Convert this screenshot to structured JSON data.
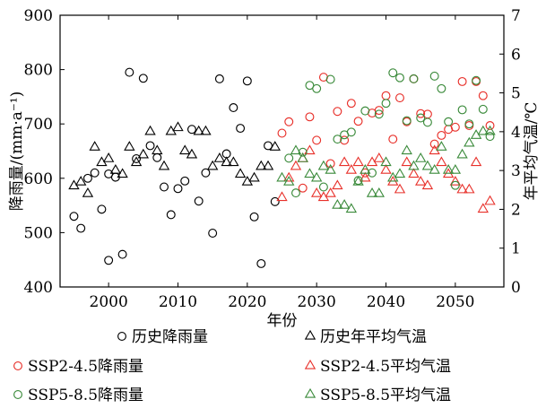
{
  "chart_data": {
    "type": "scatter",
    "xlabel": "年份",
    "ylabel_left": "降雨量/(mm·a⁻¹)",
    "ylabel_right": "年平均气温/℃",
    "xlim": [
      1993,
      2057
    ],
    "ylim_left": [
      400,
      900
    ],
    "ylim_right": [
      0,
      7
    ],
    "x_ticks": [
      2000,
      2010,
      2020,
      2030,
      2040,
      2050
    ],
    "y_left_ticks": [
      400,
      500,
      600,
      700,
      800,
      900
    ],
    "y_right_ticks": [
      0,
      1,
      2,
      3,
      4,
      5,
      6,
      7
    ],
    "grid": false,
    "legend_position": "bottom",
    "series": [
      {
        "name": "历史降雨量",
        "axis": "left",
        "marker": "circle",
        "color": "#000000",
        "points": [
          [
            1995,
            530
          ],
          [
            1996,
            508
          ],
          [
            1997,
            600
          ],
          [
            1998,
            610
          ],
          [
            1999,
            543
          ],
          [
            2000,
            449
          ],
          [
            2000,
            608
          ],
          [
            2001,
            602
          ],
          [
            2002,
            460
          ],
          [
            2003,
            795
          ],
          [
            2004,
            636
          ],
          [
            2005,
            784
          ],
          [
            2006,
            660
          ],
          [
            2007,
            638
          ],
          [
            2008,
            584
          ],
          [
            2009,
            533
          ],
          [
            2010,
            581
          ],
          [
            2011,
            595
          ],
          [
            2012,
            690
          ],
          [
            2013,
            558
          ],
          [
            2014,
            610
          ],
          [
            2015,
            499
          ],
          [
            2016,
            783
          ],
          [
            2017,
            645
          ],
          [
            2018,
            730
          ],
          [
            2019,
            692
          ],
          [
            2020,
            779
          ],
          [
            2021,
            529
          ],
          [
            2022,
            443
          ],
          [
            2023,
            660
          ],
          [
            2024,
            557
          ]
        ]
      },
      {
        "name": "历史年平均气温",
        "axis": "right",
        "marker": "triangle",
        "color": "#000000",
        "points": [
          [
            1995,
            2.6
          ],
          [
            1996,
            2.7
          ],
          [
            1997,
            2.4
          ],
          [
            1998,
            3.6
          ],
          [
            1999,
            3.2
          ],
          [
            2000,
            3.3
          ],
          [
            2001,
            3.0
          ],
          [
            2002,
            2.9
          ],
          [
            2003,
            3.6
          ],
          [
            2004,
            3.2
          ],
          [
            2005,
            3.4
          ],
          [
            2006,
            4.0
          ],
          [
            2007,
            3.5
          ],
          [
            2008,
            3.1
          ],
          [
            2009,
            4.0
          ],
          [
            2010,
            4.1
          ],
          [
            2011,
            3.5
          ],
          [
            2012,
            3.4
          ],
          [
            2013,
            4.0
          ],
          [
            2014,
            4.0
          ],
          [
            2015,
            3.1
          ],
          [
            2016,
            3.3
          ],
          [
            2017,
            3.2
          ],
          [
            2018,
            3.2
          ],
          [
            2019,
            2.9
          ],
          [
            2020,
            2.7
          ],
          [
            2021,
            2.8
          ],
          [
            2022,
            3.1
          ],
          [
            2023,
            3.1
          ],
          [
            2024,
            3.6
          ]
        ]
      },
      {
        "name": "SSP2-4.5降雨量",
        "axis": "left",
        "marker": "circle",
        "color": "#e8302a",
        "points": [
          [
            2025,
            683
          ],
          [
            2026,
            704
          ],
          [
            2028,
            582
          ],
          [
            2029,
            713
          ],
          [
            2030,
            670
          ],
          [
            2031,
            786
          ],
          [
            2032,
            627
          ],
          [
            2033,
            723
          ],
          [
            2034,
            670
          ],
          [
            2035,
            738
          ],
          [
            2036,
            705
          ],
          [
            2037,
            610
          ],
          [
            2038,
            720
          ],
          [
            2039,
            725
          ],
          [
            2040,
            752
          ],
          [
            2041,
            672
          ],
          [
            2042,
            748
          ],
          [
            2043,
            704
          ],
          [
            2044,
            783
          ],
          [
            2045,
            719
          ],
          [
            2046,
            718
          ],
          [
            2047,
            663
          ],
          [
            2048,
            679
          ],
          [
            2049,
            690
          ],
          [
            2050,
            694
          ],
          [
            2051,
            778
          ],
          [
            2052,
            697
          ],
          [
            2053,
            778
          ],
          [
            2054,
            752
          ],
          [
            2055,
            697
          ]
        ]
      },
      {
        "name": "SSP2-4.5平均气温",
        "axis": "right",
        "marker": "triangle",
        "color": "#e8302a",
        "points": [
          [
            2025,
            2.3
          ],
          [
            2026,
            2.8
          ],
          [
            2027,
            3.1
          ],
          [
            2028,
            3.3
          ],
          [
            2029,
            3.5
          ],
          [
            2030,
            2.4
          ],
          [
            2031,
            2.3
          ],
          [
            2032,
            2.4
          ],
          [
            2033,
            2.6
          ],
          [
            2034,
            3.2
          ],
          [
            2035,
            3.0
          ],
          [
            2036,
            3.2
          ],
          [
            2037,
            2.8
          ],
          [
            2038,
            3.2
          ],
          [
            2039,
            3.3
          ],
          [
            2040,
            3.0
          ],
          [
            2041,
            2.7
          ],
          [
            2042,
            2.5
          ],
          [
            2043,
            3.2
          ],
          [
            2044,
            2.9
          ],
          [
            2045,
            2.7
          ],
          [
            2046,
            2.6
          ],
          [
            2047,
            3.5
          ],
          [
            2048,
            3.2
          ],
          [
            2049,
            2.9
          ],
          [
            2050,
            2.7
          ],
          [
            2051,
            2.5
          ],
          [
            2052,
            2.5
          ],
          [
            2053,
            3.2
          ],
          [
            2054,
            2.0
          ],
          [
            2055,
            2.2
          ]
        ]
      },
      {
        "name": "SSP5-8.5降雨量",
        "axis": "left",
        "marker": "circle",
        "color": "#3a8a3a",
        "points": [
          [
            2026,
            637
          ],
          [
            2027,
            573
          ],
          [
            2028,
            648
          ],
          [
            2029,
            771
          ],
          [
            2030,
            765
          ],
          [
            2031,
            584
          ],
          [
            2032,
            782
          ],
          [
            2033,
            672
          ],
          [
            2034,
            680
          ],
          [
            2035,
            685
          ],
          [
            2036,
            596
          ],
          [
            2037,
            724
          ],
          [
            2038,
            610
          ],
          [
            2039,
            718
          ],
          [
            2040,
            738
          ],
          [
            2041,
            794
          ],
          [
            2042,
            785
          ],
          [
            2043,
            706
          ],
          [
            2044,
            783
          ],
          [
            2045,
            711
          ],
          [
            2046,
            703
          ],
          [
            2047,
            788
          ],
          [
            2048,
            765
          ],
          [
            2049,
            704
          ],
          [
            2050,
            587
          ],
          [
            2051,
            726
          ],
          [
            2052,
            700
          ],
          [
            2053,
            780
          ],
          [
            2054,
            727
          ],
          [
            2055,
            677
          ]
        ]
      },
      {
        "name": "SSP5-8.5平均气温",
        "axis": "right",
        "marker": "triangle",
        "color": "#3a8a3a",
        "points": [
          [
            2025,
            2.8
          ],
          [
            2026,
            2.7
          ],
          [
            2027,
            3.5
          ],
          [
            2028,
            3.3
          ],
          [
            2029,
            2.9
          ],
          [
            2030,
            2.8
          ],
          [
            2031,
            3.1
          ],
          [
            2032,
            3.0
          ],
          [
            2033,
            2.1
          ],
          [
            2034,
            2.1
          ],
          [
            2035,
            2.0
          ],
          [
            2036,
            2.7
          ],
          [
            2037,
            3.0
          ],
          [
            2038,
            2.4
          ],
          [
            2039,
            2.4
          ],
          [
            2040,
            3.2
          ],
          [
            2041,
            2.8
          ],
          [
            2042,
            2.9
          ],
          [
            2043,
            3.5
          ],
          [
            2044,
            3.1
          ],
          [
            2045,
            3.3
          ],
          [
            2046,
            3.1
          ],
          [
            2047,
            3.0
          ],
          [
            2048,
            3.6
          ],
          [
            2049,
            3.0
          ],
          [
            2050,
            3.0
          ],
          [
            2051,
            3.4
          ],
          [
            2052,
            3.7
          ],
          [
            2053,
            3.9
          ],
          [
            2054,
            4.0
          ],
          [
            2055,
            4.0
          ]
        ]
      }
    ]
  }
}
